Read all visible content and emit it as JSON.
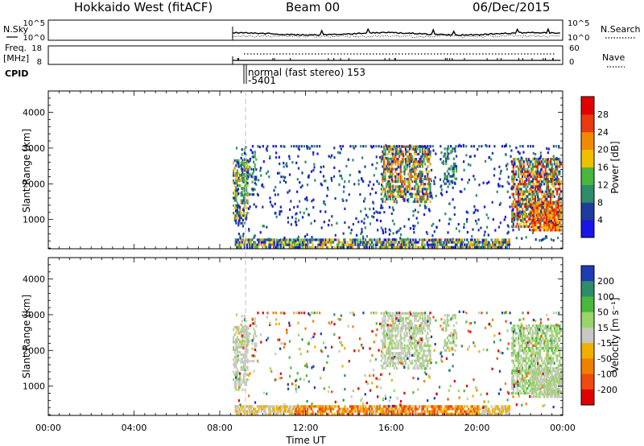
{
  "header": {
    "station": "Hokkaido West (fitACF)",
    "beam": "Beam 00",
    "date": "06/Dec/2015"
  },
  "side_labels": {
    "nsky": "N.Sky",
    "freq": "Freq.",
    "freq_unit": "[MHz]",
    "cpid": "CPID",
    "nsearch": "N.Search",
    "nave": "Nave"
  },
  "noise_panel": {
    "left_ticks": [
      "10^5",
      "10^0"
    ],
    "right_ticks": [
      "10^5",
      "10^0"
    ]
  },
  "freq_panel": {
    "left_ticks": [
      "18",
      "8"
    ],
    "right_ticks": [
      "60",
      "0"
    ]
  },
  "cpid_panel": {
    "program": "normal (fast stereo) 153",
    "id": "-5401"
  },
  "colors": {
    "power_scale": [
      "#1a14e6",
      "#1e3c9c",
      "#2e8c6a",
      "#49b640",
      "#f0c000",
      "#f28a00",
      "#e83a10",
      "#e00000"
    ],
    "velocity_scale": [
      "#1e3cb4",
      "#2e8c6a",
      "#4ab83c",
      "#9bd46a",
      "#c8c8c0",
      "#f0b000",
      "#f08000",
      "#f04a10",
      "#e00000"
    ]
  },
  "chart_data": [
    {
      "type": "heatmap",
      "ylabel": "Slant Range [km]",
      "x_range": [
        "00:00",
        "24:00"
      ],
      "ylim": [
        180,
        4600
      ],
      "y_ticks": [
        1000,
        2000,
        3000,
        4000
      ],
      "y_tick_labels": [
        "1000",
        "2000",
        "3000",
        "4000"
      ],
      "colorbar_label": "Power [dB]",
      "colorbar_ticks": [
        "4",
        "8",
        "12",
        "16",
        "20",
        "24",
        "28"
      ],
      "grid": false
    },
    {
      "type": "heatmap",
      "ylabel": "Slant Range [km]",
      "x_range": [
        "00:00",
        "24:00"
      ],
      "ylim": [
        180,
        4600
      ],
      "y_ticks": [
        1000,
        2000,
        3000,
        4000
      ],
      "y_tick_labels": [
        "1000",
        "2000",
        "3000",
        "4000"
      ],
      "colorbar_label": "Velocity [m s⁻¹]",
      "colorbar_ticks": [
        "200",
        "100",
        "50",
        "15",
        "-15",
        "-50",
        "-100",
        "-200"
      ],
      "grid": false
    }
  ],
  "x_axis": {
    "label": "Time UT",
    "ticks": [
      "00:00",
      "04:00",
      "08:00",
      "12:00",
      "16:00",
      "20:00",
      "00:00"
    ]
  }
}
